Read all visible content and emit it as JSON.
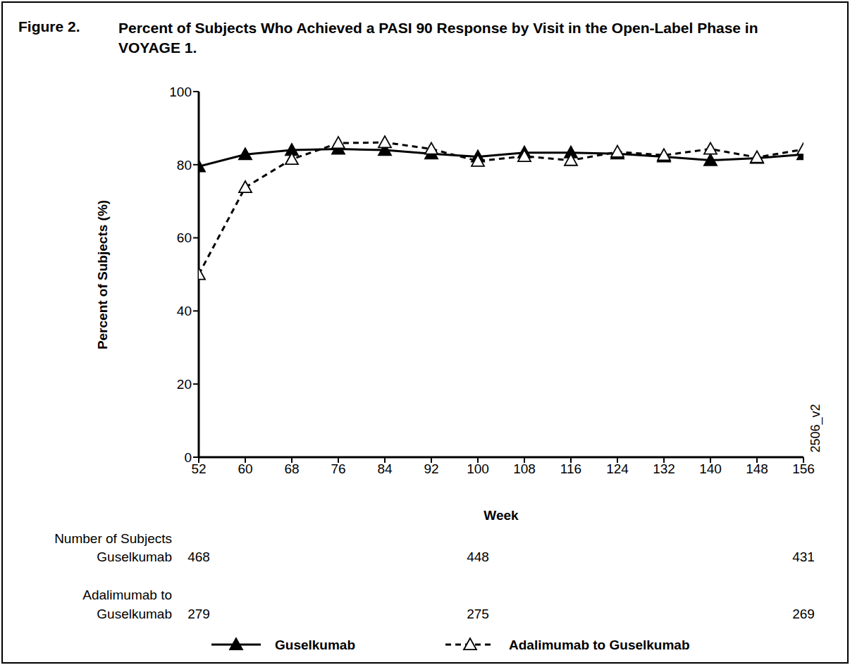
{
  "chart_data": {
    "type": "line",
    "figure_label": "Figure 2.",
    "title": "Percent of Subjects Who Achieved a PASI 90 Response by Visit in the Open-Label Phase in VOYAGE 1.",
    "x_label": "Week",
    "y_label": "Percent of Subjects (%)",
    "x": [
      52,
      60,
      68,
      76,
      84,
      92,
      100,
      108,
      116,
      124,
      132,
      140,
      148,
      156
    ],
    "series": [
      {
        "name": "Guselkumab",
        "color": "#000000",
        "marker": "filled_triangle",
        "line_style": "solid",
        "values": [
          79.5,
          82.8,
          84.0,
          84.3,
          84.0,
          83.0,
          82.2,
          83.3,
          83.3,
          83.0,
          82.2,
          81.2,
          81.8,
          82.8
        ]
      },
      {
        "name": "Adalimumab to Guselkumab",
        "color": "#000000",
        "marker": "open_triangle",
        "line_style": "dashed",
        "values": [
          50.0,
          73.8,
          81.5,
          85.9,
          86.1,
          84.3,
          81.0,
          82.3,
          81.2,
          83.5,
          82.6,
          84.3,
          82.0,
          84.2
        ]
      }
    ],
    "xlim": [
      52,
      156
    ],
    "xticks": [
      52,
      60,
      68,
      76,
      84,
      92,
      100,
      108,
      116,
      124,
      132,
      140,
      148,
      156
    ],
    "ylim": [
      0,
      100
    ],
    "yticks": [
      0,
      20,
      40,
      60,
      80,
      100
    ],
    "grid": false,
    "legend": "bottom",
    "annotations": [
      "2506_v2"
    ],
    "subjects_table": {
      "label": "Number of Subjects",
      "x": [
        52,
        100,
        156
      ],
      "rows": [
        {
          "label": [
            "Guselkumab"
          ],
          "values": [
            468,
            448,
            431
          ]
        },
        {
          "label": [
            "Adalimumab to",
            "Guselkumab"
          ],
          "values": [
            279,
            275,
            269
          ]
        }
      ]
    }
  }
}
